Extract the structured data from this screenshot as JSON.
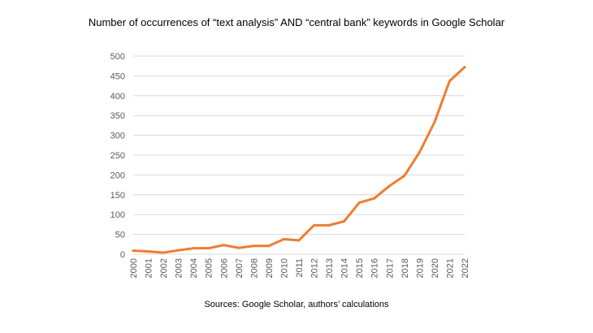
{
  "chart_data": {
    "type": "line",
    "title": "Number of occurrences of “text analysis” AND “central bank” keywords in Google Scholar",
    "xlabel": "",
    "ylabel": "",
    "x": [
      "2000",
      "2001",
      "2002",
      "2003",
      "2004",
      "2005",
      "2006",
      "2007",
      "2008",
      "2009",
      "2010",
      "2011",
      "2012",
      "2013",
      "2014",
      "2015",
      "2016",
      "2017",
      "2018",
      "2019",
      "2020",
      "2021",
      "2022"
    ],
    "series": [
      {
        "values": [
          9,
          7,
          4,
          10,
          15,
          15,
          23,
          16,
          21,
          21,
          38,
          35,
          73,
          73,
          83,
          130,
          141,
          172,
          198,
          257,
          333,
          437,
          472
        ]
      }
    ],
    "ylim": [
      0,
      500
    ],
    "yticks": [
      0,
      50,
      100,
      150,
      200,
      250,
      300,
      350,
      400,
      450,
      500
    ],
    "grid": true,
    "legend": "none",
    "line_color": "#ED7D31",
    "grid_color": "#D9D9D9"
  },
  "source": "Sources: Google Scholar, authors’ calculations"
}
